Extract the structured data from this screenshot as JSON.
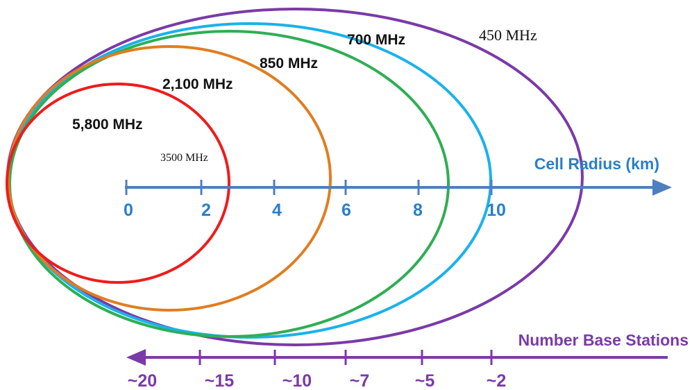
{
  "colors": {
    "purple": "#7a3aa8",
    "cyan": "#1ab2ea",
    "green": "#2fae55",
    "orange": "#e07d22",
    "red": "#ee1c1c",
    "axis_blue": "#4f7fbd",
    "axis_blue_text": "#2a7fc9",
    "axis_purple": "#7a3aa8"
  },
  "bands": {
    "b450": "450 MHz",
    "b700": "700 MHz",
    "b850": "850 MHz",
    "b2100": "2,100 MHz",
    "b5800": "5,800 MHz",
    "b3500": "3500 MHz"
  },
  "cell_axis": {
    "title": "Cell Radius (km)",
    "ticks": [
      "0",
      "2",
      "4",
      "6",
      "8",
      "10"
    ]
  },
  "stations_axis": {
    "title": "Number Base Stations",
    "ticks": [
      "~20",
      "~15",
      "~10",
      "~7",
      "~5",
      "~2"
    ]
  }
}
